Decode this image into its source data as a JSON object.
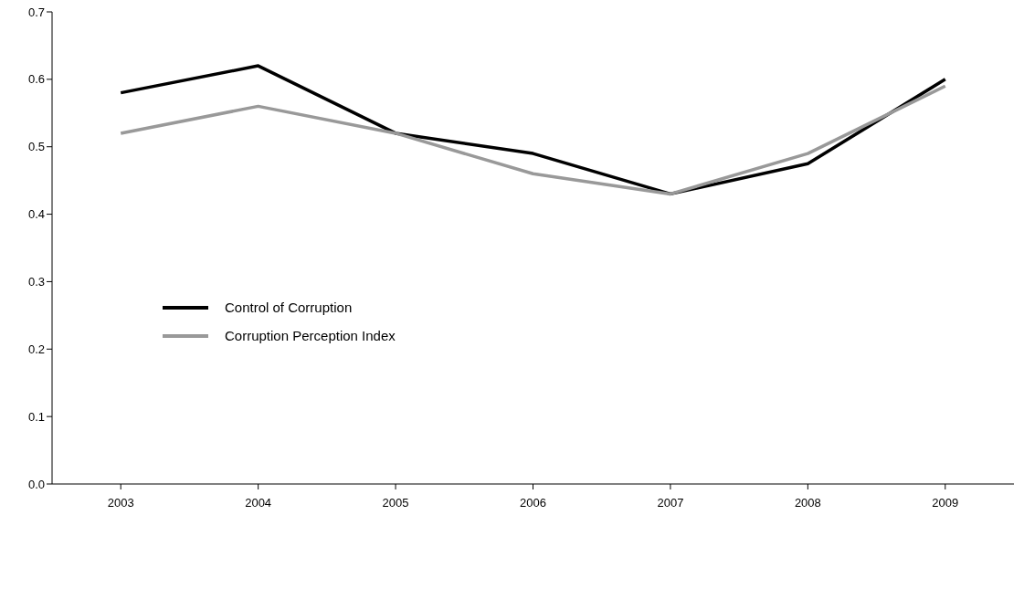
{
  "chart_data": {
    "type": "line",
    "categories": [
      "2003",
      "2004",
      "2005",
      "2006",
      "2007",
      "2008",
      "2009"
    ],
    "series": [
      {
        "name": "Control of Corruption",
        "color": "#000000",
        "values": [
          0.58,
          0.62,
          0.52,
          0.49,
          0.43,
          0.475,
          0.6
        ]
      },
      {
        "name": "Corruption Perception Index",
        "color": "#999999",
        "values": [
          0.52,
          0.56,
          0.52,
          0.46,
          0.43,
          0.49,
          0.59
        ]
      }
    ],
    "ylim": [
      0,
      0.7
    ],
    "yticks": [
      {
        "value": 0,
        "label": "0.0"
      },
      0.1,
      0.2,
      0.3,
      0.4,
      0.5,
      0.6,
      0.7
    ],
    "grid": false,
    "legend": "left",
    "marker": "none",
    "line_style": "solid"
  }
}
